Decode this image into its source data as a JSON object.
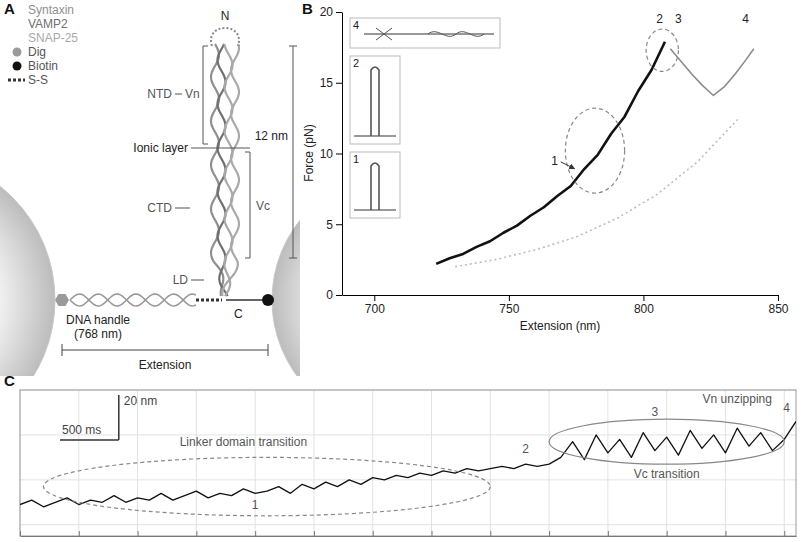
{
  "panel_a": {
    "letter": "A",
    "legend": [
      {
        "label": "Syntaxin",
        "color": "#8f8f8f"
      },
      {
        "label": "VAMP2",
        "color": "#6f6f6f"
      },
      {
        "label": "SNAP-25",
        "color": "#a9a9a9"
      },
      {
        "label": "Dig",
        "color": "#9a9a9a",
        "marker": "circle"
      },
      {
        "label": "Biotin",
        "color": "#111111",
        "marker": "circle"
      },
      {
        "label": "S-S",
        "color": "#333333",
        "marker": "line"
      }
    ],
    "labels": {
      "n_terminus": "N",
      "ntd": "NTD",
      "vn": "Vn",
      "ionic_layer": "Ionic layer",
      "length": "12 nm",
      "ctd": "CTD",
      "vc": "Vc",
      "ld": "LD",
      "c_terminus": "C",
      "dna_handle": "DNA handle",
      "dna_length": "(768 nm)",
      "extension": "Extension"
    }
  },
  "chart_data": [
    {
      "letter": "B",
      "type": "line",
      "x_label": "Extension (nm)",
      "y_label": "Force (pN)",
      "xlim": [
        688,
        850
      ],
      "xticks": [
        700,
        750,
        800,
        850
      ],
      "ylim": [
        0,
        20
      ],
      "yticks": [
        0,
        5,
        10,
        15,
        20
      ],
      "series": [
        {
          "color": "#111111",
          "x": [
            723,
            728,
            733,
            738,
            743,
            748,
            753,
            758,
            763,
            768,
            773,
            778,
            783,
            788,
            793,
            798,
            803,
            808
          ],
          "values": [
            2.2,
            2.6,
            2.9,
            3.4,
            3.8,
            4.4,
            4.9,
            5.6,
            6.2,
            7.0,
            7.7,
            8.9,
            9.9,
            11.4,
            12.6,
            14.4,
            15.9,
            17.9
          ]
        },
        {
          "color": "#8c8c8c",
          "x": [
            810,
            814,
            818,
            822,
            826,
            830,
            834,
            838,
            841
          ],
          "values": [
            17.4,
            16.5,
            15.6,
            14.8,
            14.1,
            14.7,
            15.6,
            16.6,
            17.4
          ]
        },
        {
          "color": "#bdbdbd",
          "line_style": "dotted",
          "x": [
            730,
            745,
            760,
            775,
            790,
            805,
            820,
            835
          ],
          "values": [
            2.0,
            2.5,
            3.2,
            4.1,
            5.4,
            7.1,
            9.4,
            12.4
          ]
        }
      ],
      "annotations": [
        {
          "text": "1",
          "x": 767,
          "y": 9.2
        },
        {
          "text": "2",
          "x": 806,
          "y": 19.2
        },
        {
          "text": "3",
          "x": 813,
          "y": 19.2
        },
        {
          "text": "4",
          "x": 838,
          "y": 19.2
        }
      ],
      "regions": [
        {
          "x": [
            771,
            793
          ],
          "y": [
            7.2,
            13.2
          ],
          "line_style": "dashed"
        },
        {
          "x": [
            801,
            813
          ],
          "y": [
            15.8,
            18.8
          ],
          "line_style": "dashed"
        }
      ],
      "insets": [
        {
          "label": "4"
        },
        {
          "label": "2"
        },
        {
          "label": "1"
        }
      ]
    },
    {
      "letter": "C",
      "type": "line",
      "grid": true,
      "tick_labels": false,
      "xlim": [
        0,
        6600
      ],
      "xticks": [
        0,
        500,
        1000,
        1500,
        2000,
        2500,
        3000,
        3500,
        4000,
        4500,
        5000,
        5500,
        6000,
        6500
      ],
      "ylim": [
        15,
        80
      ],
      "yticks": [
        20,
        40,
        60,
        80
      ],
      "x": [
        0,
        100,
        200,
        300,
        400,
        500,
        600,
        700,
        800,
        900,
        1000,
        1100,
        1200,
        1300,
        1400,
        1500,
        1600,
        1700,
        1800,
        1900,
        2000,
        2100,
        2200,
        2300,
        2400,
        2500,
        2600,
        2700,
        2800,
        2900,
        3000,
        3100,
        3200,
        3300,
        3400,
        3500,
        3600,
        3700,
        3800,
        3900,
        4000,
        4100,
        4200,
        4300,
        4400,
        4500,
        4600,
        4700,
        4800,
        4900,
        5000,
        5100,
        5200,
        5300,
        5400,
        5500,
        5600,
        5700,
        5800,
        5900,
        6000,
        6100,
        6200,
        6300,
        6400,
        6500,
        6600
      ],
      "series": [
        {
          "color": "#111111",
          "values": [
            29,
            31,
            28,
            30,
            32,
            29,
            31,
            30,
            33,
            30,
            32,
            31,
            34,
            31,
            33,
            35,
            32,
            34,
            33,
            36,
            34,
            35,
            37,
            34,
            38,
            36,
            39,
            37,
            40,
            38,
            41,
            40,
            42,
            41,
            43,
            42,
            44,
            43,
            45,
            44,
            45,
            46,
            45,
            47,
            46,
            47,
            50,
            57,
            49,
            60,
            52,
            58,
            50,
            61,
            53,
            59,
            51,
            62,
            54,
            60,
            52,
            63,
            55,
            61,
            53,
            58,
            66
          ]
        }
      ],
      "scale_bar": {
        "x": 500,
        "x_label": "500 ms",
        "y": 20,
        "y_label": "20 nm"
      },
      "annotations": [
        {
          "text": "Linker domain transition",
          "x": 1900,
          "y": 55
        },
        {
          "text": "1",
          "x": 2000,
          "y": 27
        },
        {
          "text": "2",
          "x": 4300,
          "y": 52
        },
        {
          "text": "Vc transition",
          "x": 5500,
          "y": 41
        },
        {
          "text": "3",
          "x": 5400,
          "y": 68.5
        },
        {
          "text": "Vn unzipping",
          "x": 6100,
          "y": 74
        },
        {
          "text": "4",
          "x": 6520,
          "y": 70
        }
      ],
      "regions": [
        {
          "x": [
            200,
            4000
          ],
          "y": [
            24,
            50
          ],
          "line_style": "dashed"
        },
        {
          "x": [
            4500,
            6500
          ],
          "y": [
            47,
            67
          ],
          "line_style": "solid"
        }
      ]
    }
  ]
}
